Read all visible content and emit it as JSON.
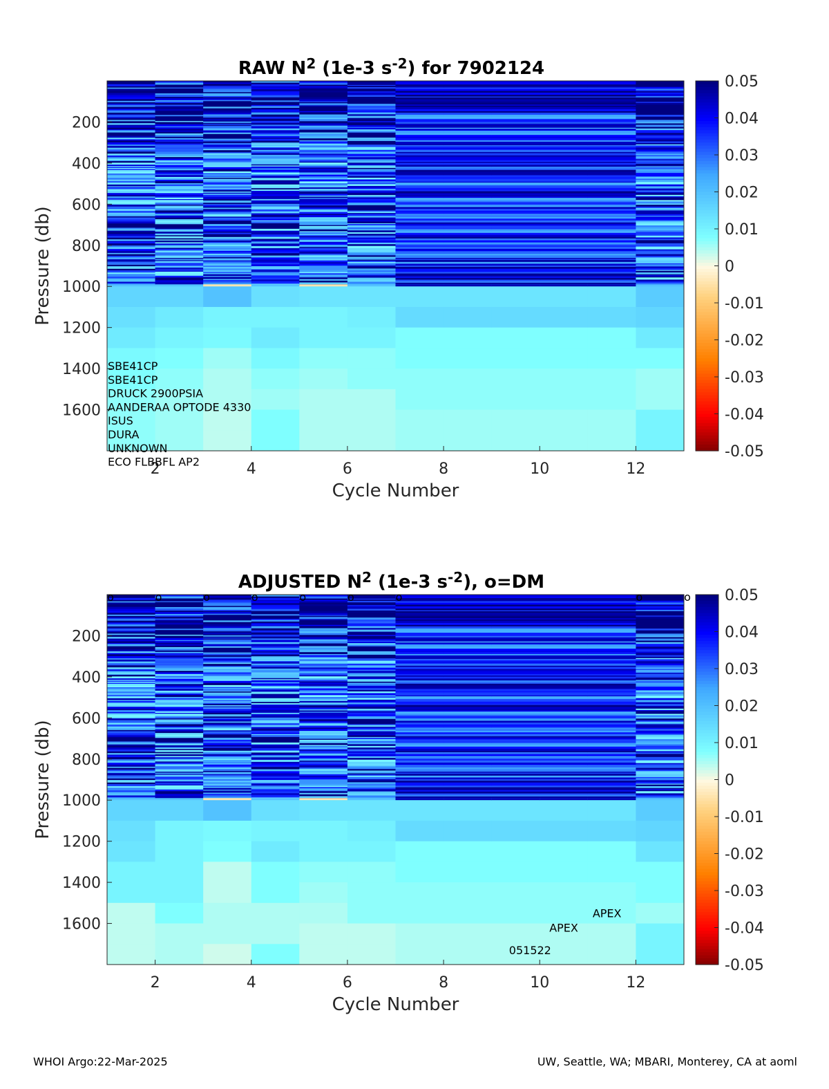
{
  "footer": {
    "left": "WHOI Argo:22-Mar-2025",
    "right": "UW, Seattle, WA; MBARI, Monterey, CA at aoml"
  },
  "chart_data": [
    {
      "type": "heatmap",
      "title": {
        "prefix": "RAW N",
        "sup1": "2",
        "mid": " (1e-3 s",
        "sup2": "-2",
        "suffix": ") for 7902124"
      },
      "xlabel": "Cycle Number",
      "ylabel": "Pressure (db)",
      "xlim": [
        1,
        13
      ],
      "ylim": [
        1800,
        0
      ],
      "xticks": [
        2,
        4,
        6,
        8,
        10,
        12
      ],
      "yticks": [
        200,
        400,
        600,
        800,
        1000,
        1200,
        1400,
        1600
      ],
      "cycles": [
        1,
        2,
        3,
        4,
        5,
        6,
        7,
        8,
        9,
        10,
        11,
        12,
        13
      ],
      "colormap": "jet_reversed",
      "clim": [
        -0.05,
        0.05
      ],
      "colorbar_ticks": [
        "0.05",
        "0.04",
        "0.03",
        "0.02",
        "0.01",
        "0",
        "-0.01",
        "-0.02",
        "-0.03",
        "-0.04",
        "-0.05"
      ],
      "colorbar_stops": [
        "#7f0000",
        "#ff0000",
        "#ff8000",
        "#ffd27f",
        "#fff8e0",
        "#7fffff",
        "#40a8ff",
        "#0000ff",
        "#00007f"
      ],
      "pressure_bins": [
        1050,
        1150,
        1250,
        1350,
        1450,
        1550,
        1650,
        1750
      ],
      "deep_values": [
        [
          0.016,
          0.014,
          0.012,
          0.009,
          0.008,
          0.007,
          0.007,
          0.007
        ],
        [
          0.016,
          0.012,
          0.01,
          0.008,
          0.007,
          0.006,
          0.006,
          0.006
        ],
        [
          0.02,
          0.01,
          0.009,
          0.006,
          0.005,
          0.005,
          0.004,
          0.004
        ],
        [
          0.014,
          0.01,
          0.012,
          0.009,
          0.007,
          0.006,
          0.008,
          0.008
        ],
        [
          0.013,
          0.01,
          0.01,
          0.007,
          0.006,
          0.005,
          0.005,
          0.005
        ],
        [
          0.013,
          0.011,
          0.01,
          0.007,
          0.007,
          0.005,
          0.005,
          0.005
        ],
        [
          0.013,
          0.015,
          0.008,
          0.008,
          0.007,
          0.007,
          0.006,
          0.006
        ],
        [
          0.013,
          0.015,
          0.008,
          0.008,
          0.007,
          0.007,
          0.006,
          0.006
        ],
        [
          0.013,
          0.015,
          0.008,
          0.008,
          0.007,
          0.007,
          0.006,
          0.006
        ],
        [
          0.013,
          0.015,
          0.008,
          0.008,
          0.007,
          0.007,
          0.006,
          0.006
        ],
        [
          0.013,
          0.015,
          0.008,
          0.008,
          0.007,
          0.007,
          0.006,
          0.006
        ],
        [
          0.018,
          0.016,
          0.012,
          0.008,
          0.006,
          0.006,
          0.01,
          0.01
        ]
      ],
      "annotations": [
        "SBE41CP",
        "SBE41CP",
        "DRUCK 2900PSIA",
        "AANDERAA OPTODE 4330",
        "ISUS",
        "DURA",
        "UNKNOWN",
        "ECO FLBBFL AP2"
      ]
    },
    {
      "type": "heatmap",
      "title": {
        "prefix": "ADJUSTED N",
        "sup1": "2",
        "mid": " (1e-3 s",
        "sup2": "-2",
        "suffix": "), o=DM"
      },
      "xlabel": "Cycle Number",
      "ylabel": "Pressure (db)",
      "xlim": [
        1,
        13
      ],
      "ylim": [
        1800,
        0
      ],
      "xticks": [
        2,
        4,
        6,
        8,
        10,
        12
      ],
      "yticks": [
        200,
        400,
        600,
        800,
        1000,
        1200,
        1400,
        1600
      ],
      "cycles": [
        1,
        2,
        3,
        4,
        5,
        6,
        7,
        8,
        9,
        10,
        11,
        12,
        13
      ],
      "colormap": "jet_reversed",
      "clim": [
        -0.05,
        0.05
      ],
      "colorbar_ticks": [
        "0.05",
        "0.04",
        "0.03",
        "0.02",
        "0.01",
        "0",
        "-0.01",
        "-0.02",
        "-0.03",
        "-0.04",
        "-0.05"
      ],
      "colorbar_stops": [
        "#7f0000",
        "#ff0000",
        "#ff8000",
        "#ffd27f",
        "#fff8e0",
        "#7fffff",
        "#40a8ff",
        "#0000ff",
        "#00007f"
      ],
      "pressure_bins": [
        1050,
        1150,
        1250,
        1350,
        1450,
        1550,
        1650,
        1750
      ],
      "deep_values": [
        [
          0.016,
          0.014,
          0.013,
          0.01,
          0.01,
          0.004,
          0.004,
          0.004
        ],
        [
          0.016,
          0.01,
          0.01,
          0.01,
          0.01,
          0.008,
          0.005,
          0.005
        ],
        [
          0.02,
          0.009,
          0.008,
          0.004,
          0.004,
          0.005,
          0.005,
          0.003
        ],
        [
          0.014,
          0.01,
          0.012,
          0.008,
          0.008,
          0.005,
          0.005,
          0.008
        ],
        [
          0.013,
          0.01,
          0.01,
          0.007,
          0.006,
          0.005,
          0.004,
          0.004
        ],
        [
          0.013,
          0.011,
          0.01,
          0.007,
          0.007,
          0.007,
          0.004,
          0.004
        ],
        [
          0.013,
          0.015,
          0.008,
          0.008,
          0.007,
          0.007,
          0.005,
          0.005
        ],
        [
          0.013,
          0.015,
          0.008,
          0.008,
          0.007,
          0.007,
          0.005,
          0.005
        ],
        [
          0.013,
          0.015,
          0.008,
          0.008,
          0.007,
          0.007,
          0.005,
          0.005
        ],
        [
          0.013,
          0.015,
          0.008,
          0.008,
          0.007,
          0.007,
          0.005,
          0.005
        ],
        [
          0.013,
          0.015,
          0.008,
          0.008,
          0.007,
          0.007,
          0.005,
          0.005
        ],
        [
          0.018,
          0.016,
          0.013,
          0.008,
          0.008,
          0.006,
          0.01,
          0.01
        ]
      ],
      "dm_marker": "o",
      "dm_cycles": [
        1,
        2,
        3,
        4,
        5,
        6,
        7,
        12,
        13
      ],
      "labels": [
        {
          "text": "APEX",
          "x": 11.4,
          "y": 1570
        },
        {
          "text": "APEX",
          "x": 10.5,
          "y": 1640
        },
        {
          "text": "051522",
          "x": 9.8,
          "y": 1750
        }
      ]
    }
  ]
}
